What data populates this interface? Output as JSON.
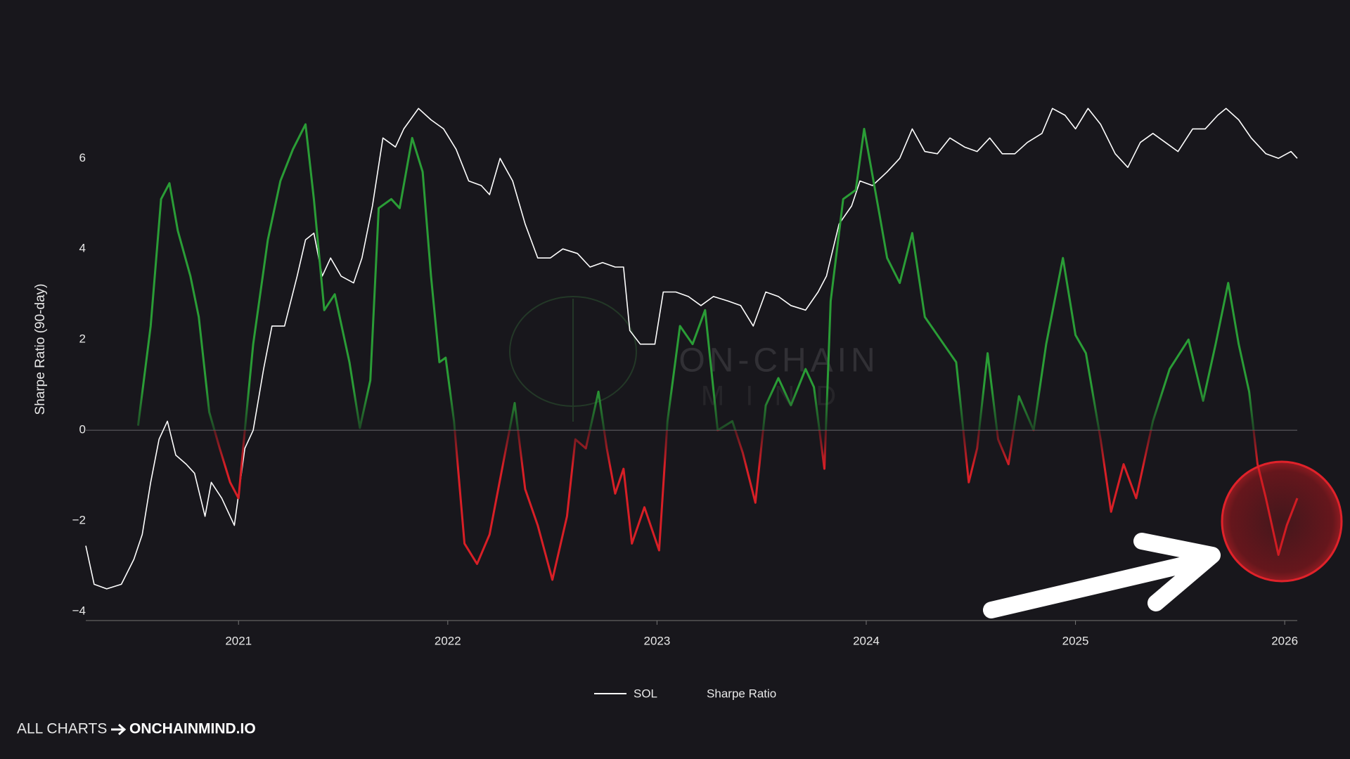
{
  "chart_data": {
    "type": "line",
    "y_label": "Sharpe Ratio (90-day)",
    "watermark": [
      "ON-CHAIN",
      "MIND"
    ],
    "footer": {
      "prefix": "ALL CHARTS",
      "site": "ONCHAINMIND.IO"
    },
    "xlim": [
      2020.27,
      2026.06
    ],
    "xticks": [
      2021,
      2022,
      2023,
      2024,
      2025,
      2026
    ],
    "ylim": [
      -4.2,
      7.4
    ],
    "yticks": [
      {
        "value": -4,
        "label": "−4"
      },
      {
        "value": -2,
        "label": "−2"
      },
      0,
      2,
      4,
      6
    ],
    "zero_line": true,
    "series": [
      {
        "name": "SOL",
        "color": "#ffffff",
        "x": [
          2020.27,
          2020.31,
          2020.37,
          2020.44,
          2020.5,
          2020.54,
          2020.58,
          2020.62,
          2020.66,
          2020.7,
          2020.75,
          2020.79,
          2020.84,
          2020.87,
          2020.92,
          2020.98,
          2021.03,
          2021.07,
          2021.12,
          2021.16,
          2021.22,
          2021.28,
          2021.32,
          2021.36,
          2021.4,
          2021.44,
          2021.49,
          2021.55,
          2021.59,
          2021.64,
          2021.69,
          2021.75,
          2021.79,
          2021.86,
          2021.92,
          2021.98,
          2022.04,
          2022.1,
          2022.16,
          2022.2,
          2022.25,
          2022.31,
          2022.37,
          2022.43,
          2022.49,
          2022.55,
          2022.62,
          2022.68,
          2022.74,
          2022.8,
          2022.84,
          2022.87,
          2022.92,
          2022.99,
          2023.03,
          2023.09,
          2023.15,
          2023.21,
          2023.27,
          2023.34,
          2023.4,
          2023.46,
          2023.52,
          2023.58,
          2023.64,
          2023.71,
          2023.77,
          2023.81,
          2023.87,
          2023.93,
          2023.97,
          2024.03,
          2024.1,
          2024.16,
          2024.22,
          2024.28,
          2024.34,
          2024.4,
          2024.47,
          2024.53,
          2024.59,
          2024.65,
          2024.71,
          2024.77,
          2024.84,
          2024.89,
          2024.95,
          2025.0,
          2025.06,
          2025.12,
          2025.19,
          2025.25,
          2025.31,
          2025.37,
          2025.43,
          2025.49,
          2025.56,
          2025.62,
          2025.68,
          2025.72,
          2025.78,
          2025.84,
          2025.91,
          2025.97,
          2026.03,
          2026.06
        ],
        "values": [
          -2.55,
          -3.4,
          -3.5,
          -3.4,
          -2.85,
          -2.3,
          -1.15,
          -0.2,
          0.2,
          -0.55,
          -0.75,
          -0.95,
          -1.9,
          -1.15,
          -1.5,
          -2.1,
          -0.4,
          0,
          1.35,
          2.3,
          2.3,
          3.4,
          4.2,
          4.35,
          3.4,
          3.8,
          3.4,
          3.25,
          3.8,
          4.95,
          6.45,
          6.25,
          6.65,
          7.1,
          6.85,
          6.65,
          6.2,
          5.5,
          5.4,
          5.2,
          6.0,
          5.5,
          4.55,
          3.8,
          3.8,
          4.0,
          3.9,
          3.6,
          3.7,
          3.6,
          3.6,
          2.2,
          1.9,
          1.9,
          3.05,
          3.05,
          2.95,
          2.75,
          2.95,
          2.85,
          2.75,
          2.3,
          3.05,
          2.95,
          2.75,
          2.65,
          3.05,
          3.4,
          4.55,
          4.95,
          5.5,
          5.4,
          5.7,
          6.0,
          6.65,
          6.15,
          6.1,
          6.45,
          6.25,
          6.15,
          6.45,
          6.1,
          6.1,
          6.35,
          6.55,
          7.1,
          6.95,
          6.65,
          7.1,
          6.75,
          6.1,
          5.8,
          6.35,
          6.55,
          6.35,
          6.15,
          6.65,
          6.65,
          6.95,
          7.1,
          6.85,
          6.45,
          6.1,
          6.0,
          6.15,
          6.0
        ]
      },
      {
        "name": "Sharpe Ratio",
        "color": "#2a9d36",
        "negative_color": "#d81f26",
        "x": [
          2020.52,
          2020.58,
          2020.63,
          2020.67,
          2020.71,
          2020.77,
          2020.81,
          2020.86,
          2020.91,
          2020.96,
          2021.0,
          2021.03,
          2021.07,
          2021.14,
          2021.2,
          2021.26,
          2021.32,
          2021.36,
          2021.41,
          2021.46,
          2021.53,
          2021.58,
          2021.63,
          2021.67,
          2021.73,
          2021.77,
          2021.83,
          2021.88,
          2021.92,
          2021.96,
          2021.99,
          2022.03,
          2022.08,
          2022.14,
          2022.2,
          2022.27,
          2022.32,
          2022.37,
          2022.43,
          2022.5,
          2022.57,
          2022.61,
          2022.66,
          2022.72,
          2022.76,
          2022.8,
          2022.84,
          2022.88,
          2022.94,
          2023.01,
          2023.05,
          2023.11,
          2023.17,
          2023.23,
          2023.29,
          2023.36,
          2023.41,
          2023.47,
          2023.52,
          2023.58,
          2023.64,
          2023.71,
          2023.75,
          2023.8,
          2023.83,
          2023.89,
          2023.95,
          2023.99,
          2024.06,
          2024.1,
          2024.16,
          2024.22,
          2024.28,
          2024.34,
          2024.43,
          2024.49,
          2024.53,
          2024.58,
          2024.63,
          2024.68,
          2024.73,
          2024.8,
          2024.86,
          2024.94,
          2025.0,
          2025.05,
          2025.12,
          2025.17,
          2025.23,
          2025.29,
          2025.37,
          2025.45,
          2025.54,
          2025.61,
          2025.67,
          2025.73,
          2025.78,
          2025.83,
          2025.87,
          2025.91,
          2025.97,
          2026.01,
          2026.06
        ],
        "values": [
          0.1,
          2.3,
          5.1,
          5.45,
          4.4,
          3.4,
          2.5,
          0.4,
          -0.4,
          -1.15,
          -1.5,
          0,
          1.9,
          4.2,
          5.5,
          6.2,
          6.75,
          5.1,
          2.65,
          3.0,
          1.5,
          0.05,
          1.1,
          4.9,
          5.1,
          4.9,
          6.45,
          5.7,
          3.4,
          1.5,
          1.6,
          0.2,
          -2.5,
          -2.95,
          -2.3,
          -0.6,
          0.6,
          -1.3,
          -2.1,
          -3.3,
          -1.9,
          -0.2,
          -0.4,
          0.85,
          -0.4,
          -1.4,
          -0.85,
          -2.5,
          -1.7,
          -2.65,
          0.2,
          2.3,
          1.9,
          2.65,
          0,
          0.2,
          -0.5,
          -1.6,
          0.55,
          1.15,
          0.55,
          1.35,
          0.95,
          -0.85,
          2.85,
          5.1,
          5.3,
          6.65,
          4.85,
          3.8,
          3.25,
          4.35,
          2.5,
          2.1,
          1.5,
          -1.15,
          -0.4,
          1.7,
          -0.2,
          -0.75,
          0.75,
          0,
          1.9,
          3.8,
          2.1,
          1.7,
          -0.2,
          -1.8,
          -0.75,
          -1.5,
          0.2,
          1.35,
          2.0,
          0.65,
          1.9,
          3.25,
          1.9,
          0.85,
          -0.75,
          -1.5,
          -2.75,
          -2.1,
          -1.5
        ]
      }
    ]
  }
}
